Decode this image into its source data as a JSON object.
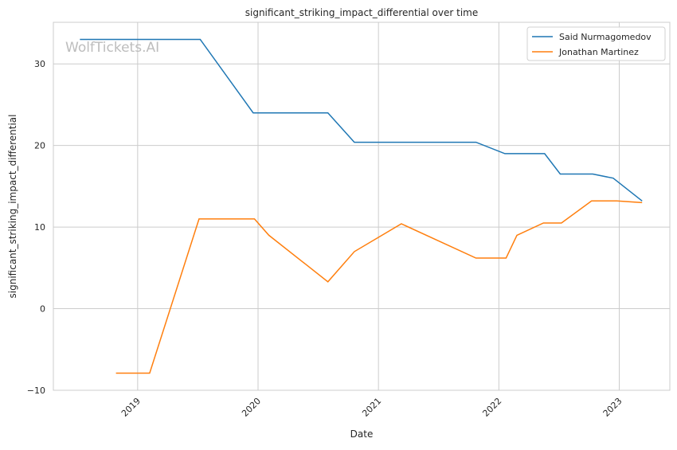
{
  "chart_data": {
    "type": "line",
    "title": "significant_striking_impact_differential over time",
    "xlabel": "Date",
    "ylabel": "significant_striking_impact_differential",
    "xlim": [
      2018.3,
      2023.42
    ],
    "ylim": [
      -10,
      35.1
    ],
    "xticks": [
      2019,
      2020,
      2021,
      2022,
      2023
    ],
    "xtick_labels": [
      "2019",
      "2020",
      "2021",
      "2022",
      "2023"
    ],
    "yticks": [
      -10,
      0,
      10,
      20,
      30
    ],
    "ytick_labels": [
      "−10",
      "0",
      "10",
      "20",
      "30"
    ],
    "grid": true,
    "legend_position": "top-right",
    "watermark": "WolfTickets.AI",
    "series": [
      {
        "name": "Said Nurmagomedov",
        "color": "#1f77b4",
        "x": [
          2018.52,
          2019.52,
          2019.96,
          2020.58,
          2020.8,
          2021.81,
          2022.05,
          2022.38,
          2022.51,
          2022.78,
          2022.95,
          2023.19
        ],
        "y": [
          33,
          33,
          24,
          24,
          20.4,
          20.4,
          19,
          19,
          16.5,
          16.5,
          16,
          13.2
        ]
      },
      {
        "name": "Jonathan Martinez",
        "color": "#ff7f0e",
        "x": [
          2018.82,
          2019.1,
          2019.51,
          2019.97,
          2020.09,
          2020.58,
          2020.8,
          2021.19,
          2021.81,
          2022.06,
          2022.15,
          2022.37,
          2022.52,
          2022.77,
          2022.98,
          2023.19
        ],
        "y": [
          -7.9,
          -7.9,
          11,
          11,
          9,
          3.3,
          7,
          10.4,
          6.2,
          6.2,
          9,
          10.5,
          10.5,
          13.2,
          13.2,
          13.0
        ]
      }
    ]
  }
}
